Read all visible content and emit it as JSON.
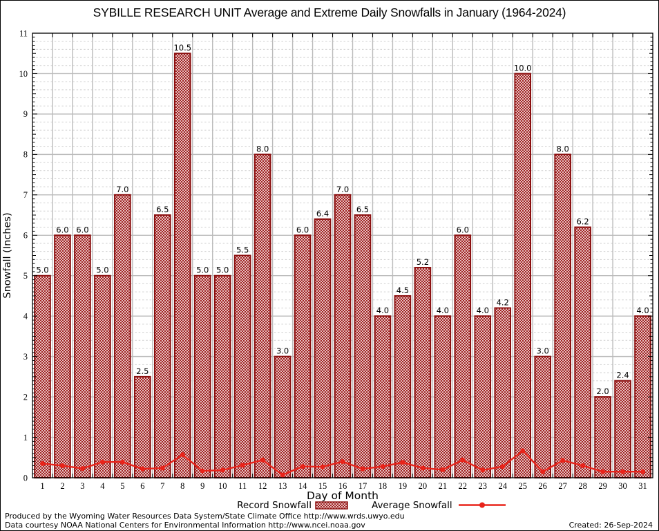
{
  "title": "SYBILLE RESEARCH UNIT Average and Extreme Daily Snowfalls in January (1964-2024)",
  "footer": {
    "line1": "Produced by the Wyoming Water Resources Data System/State Climate Office http://www.wrds.uwyo.edu",
    "line2": "Data courtesy NOAA National Centers for Environmental Information http://www.ncei.noaa.gov",
    "created": "Created: 26-Sep-2024"
  },
  "chart_data": {
    "type": "bar",
    "title": "SYBILLE RESEARCH UNIT Average and Extreme Daily Snowfalls in January (1964-2024)",
    "xlabel": "Day of Month",
    "ylabel": "Snowfall (Inches)",
    "ylim": [
      0,
      11
    ],
    "y_major_step": 1,
    "y_minor_step": 0.2,
    "grid": true,
    "legend_position": "bottom",
    "categories": [
      1,
      2,
      3,
      4,
      5,
      6,
      7,
      8,
      9,
      10,
      11,
      12,
      13,
      14,
      15,
      16,
      17,
      18,
      19,
      20,
      21,
      22,
      23,
      24,
      25,
      26,
      27,
      28,
      29,
      30,
      31
    ],
    "series": [
      {
        "name": "Record Snowfall",
        "type": "bar",
        "values": [
          5.0,
          6.0,
          6.0,
          5.0,
          7.0,
          2.5,
          6.5,
          10.5,
          5.0,
          5.0,
          5.5,
          8.0,
          3.0,
          6.0,
          6.4,
          7.0,
          6.5,
          4.0,
          4.5,
          5.2,
          4.0,
          6.0,
          4.0,
          4.2,
          10.0,
          3.0,
          8.0,
          6.2,
          2.0,
          2.4,
          4.0
        ]
      },
      {
        "name": "Average Snowfall",
        "type": "line",
        "values": [
          0.35,
          0.3,
          0.23,
          0.39,
          0.39,
          0.22,
          0.24,
          0.57,
          0.17,
          0.19,
          0.31,
          0.44,
          0.07,
          0.28,
          0.27,
          0.4,
          0.22,
          0.28,
          0.38,
          0.24,
          0.2,
          0.44,
          0.19,
          0.28,
          0.67,
          0.15,
          0.43,
          0.3,
          0.15,
          0.15,
          0.15
        ]
      }
    ],
    "bar_labels": [
      "5.0",
      "6.0",
      "6.0",
      "5.0",
      "7.0",
      "2.5",
      "6.5",
      "10.5",
      "5.0",
      "5.0",
      "5.5",
      "8.0",
      "3.0",
      "6.0",
      "6.4",
      "7.0",
      "6.5",
      "4.0",
      "4.5",
      "5.2",
      "4.0",
      "6.0",
      "4.0",
      "4.2",
      "10.0",
      "3.0",
      "8.0",
      "6.2",
      "2.0",
      "2.4",
      "4.0"
    ],
    "colors": {
      "bar_edge": "#8b0f0f",
      "bar_hatch": "#9a1212",
      "line": "#e8231a",
      "grid_major": "#bbbbbb",
      "grid_minor": "#cfcfcf",
      "frame": "#000000"
    }
  }
}
